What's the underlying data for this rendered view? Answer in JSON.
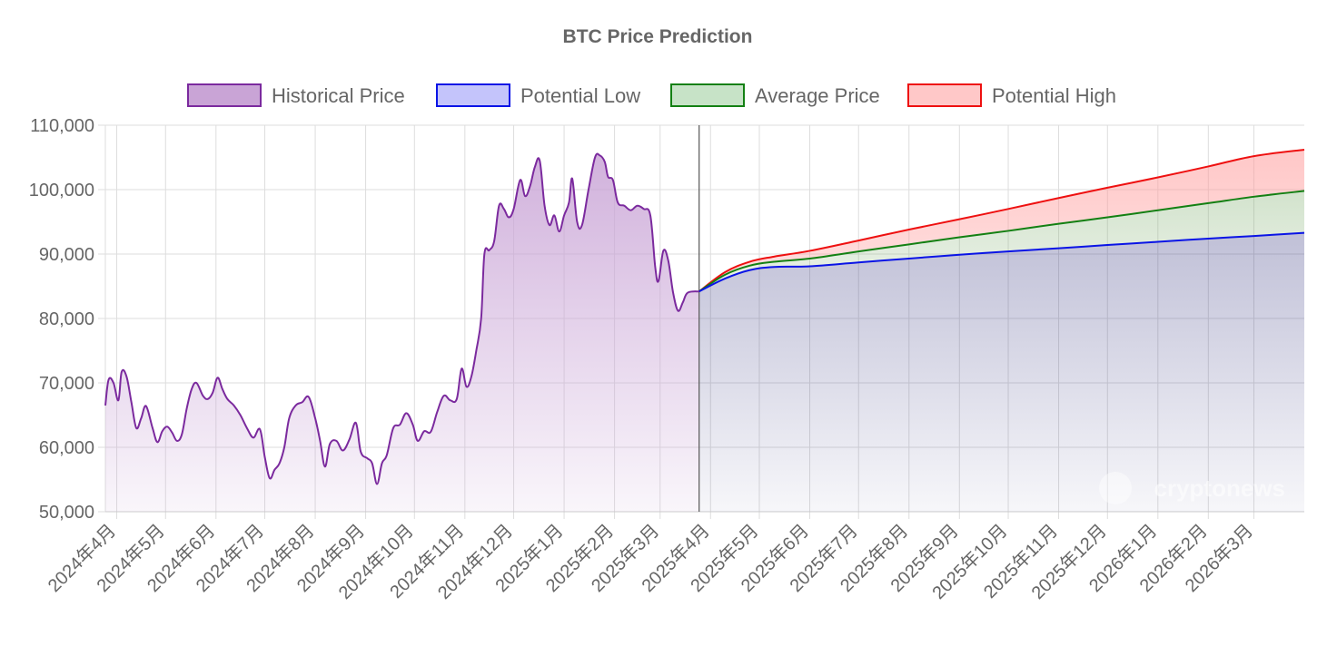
{
  "chart_data": {
    "type": "area",
    "title": "BTC Price Prediction",
    "watermark": "cryptonews",
    "y_ticks": [
      "110,000",
      "100,000",
      "90,000",
      "80,000",
      "70,000",
      "60,000",
      "50,000"
    ],
    "ylim": [
      50000,
      110000
    ],
    "x_tick_labels": [
      "2024年4月",
      "2024年5月",
      "2024年6月",
      "2024年7月",
      "2024年8月",
      "2024年9月",
      "2024年10月",
      "2024年11月",
      "2024年12月",
      "2025年1月",
      "2025年2月",
      "2025年3月",
      "2025年4月",
      "2025年5月",
      "2025年6月",
      "2025年7月",
      "2025年8月",
      "2025年9月",
      "2025年10月",
      "2025年11月",
      "2025年12月",
      "2026年1月",
      "2026年2月",
      "2026年3月"
    ],
    "x_range": [
      "2024-03-25",
      "2026-04-01"
    ],
    "grid": true,
    "legend_position": "top",
    "colors": {
      "historical_line": "#7b2a9e",
      "historical_fill": "#c9a4d6",
      "low_line": "#0a14e6",
      "low_fill": "#c4c4fb",
      "avg_line": "#138013",
      "avg_fill": "#c7e3c7",
      "high_line": "#ee1010",
      "high_fill": "#ffc8c8",
      "grid": "#dddddd",
      "text": "#666666"
    },
    "series": [
      {
        "name": "Historical Price",
        "key": "historical",
        "points": [
          [
            "2024-03-25",
            66500
          ],
          [
            "2024-03-27",
            70500
          ],
          [
            "2024-03-30",
            70000
          ],
          [
            "2024-04-02",
            67300
          ],
          [
            "2024-04-04",
            71700
          ],
          [
            "2024-04-07",
            71000
          ],
          [
            "2024-04-10",
            67000
          ],
          [
            "2024-04-13",
            63000
          ],
          [
            "2024-04-16",
            64500
          ],
          [
            "2024-04-19",
            66400
          ],
          [
            "2024-04-23",
            63000
          ],
          [
            "2024-04-26",
            60800
          ],
          [
            "2024-04-29",
            62500
          ],
          [
            "2024-05-02",
            63200
          ],
          [
            "2024-05-05",
            62300
          ],
          [
            "2024-05-08",
            61000
          ],
          [
            "2024-05-11",
            62000
          ],
          [
            "2024-05-14",
            66000
          ],
          [
            "2024-05-17",
            69000
          ],
          [
            "2024-05-20",
            70000
          ],
          [
            "2024-05-24",
            68000
          ],
          [
            "2024-05-27",
            67500
          ],
          [
            "2024-05-30",
            68500
          ],
          [
            "2024-06-02",
            70800
          ],
          [
            "2024-06-05",
            69000
          ],
          [
            "2024-06-08",
            67500
          ],
          [
            "2024-06-12",
            66500
          ],
          [
            "2024-06-16",
            65000
          ],
          [
            "2024-06-20",
            63000
          ],
          [
            "2024-06-24",
            61500
          ],
          [
            "2024-06-28",
            62800
          ],
          [
            "2024-07-01",
            58500
          ],
          [
            "2024-07-04",
            55200
          ],
          [
            "2024-07-07",
            56500
          ],
          [
            "2024-07-10",
            57500
          ],
          [
            "2024-07-13",
            60000
          ],
          [
            "2024-07-16",
            64500
          ],
          [
            "2024-07-20",
            66500
          ],
          [
            "2024-07-24",
            67000
          ],
          [
            "2024-07-28",
            67800
          ],
          [
            "2024-08-01",
            64500
          ],
          [
            "2024-08-04",
            61000
          ],
          [
            "2024-08-07",
            57000
          ],
          [
            "2024-08-10",
            60500
          ],
          [
            "2024-08-14",
            61000
          ],
          [
            "2024-08-18",
            59500
          ],
          [
            "2024-08-22",
            61200
          ],
          [
            "2024-08-26",
            63800
          ],
          [
            "2024-08-29",
            59300
          ],
          [
            "2024-09-02",
            58300
          ],
          [
            "2024-09-05",
            57500
          ],
          [
            "2024-09-08",
            54300
          ],
          [
            "2024-09-11",
            57500
          ],
          [
            "2024-09-14",
            58800
          ],
          [
            "2024-09-18",
            63000
          ],
          [
            "2024-09-22",
            63500
          ],
          [
            "2024-09-26",
            65300
          ],
          [
            "2024-09-30",
            63500
          ],
          [
            "2024-10-03",
            61000
          ],
          [
            "2024-10-07",
            62500
          ],
          [
            "2024-10-11",
            62400
          ],
          [
            "2024-10-15",
            65500
          ],
          [
            "2024-10-19",
            68000
          ],
          [
            "2024-10-23",
            67300
          ],
          [
            "2024-10-27",
            67500
          ],
          [
            "2024-10-30",
            72200
          ],
          [
            "2024-11-02",
            69400
          ],
          [
            "2024-11-05",
            71000
          ],
          [
            "2024-11-08",
            75000
          ],
          [
            "2024-11-11",
            80000
          ],
          [
            "2024-11-13",
            90000
          ],
          [
            "2024-11-16",
            90600
          ],
          [
            "2024-11-19",
            92000
          ],
          [
            "2024-11-22",
            97500
          ],
          [
            "2024-11-25",
            97000
          ],
          [
            "2024-11-28",
            95700
          ],
          [
            "2024-12-01",
            97000
          ],
          [
            "2024-12-05",
            101500
          ],
          [
            "2024-12-08",
            99000
          ],
          [
            "2024-12-11",
            100500
          ],
          [
            "2024-12-14",
            103500
          ],
          [
            "2024-12-17",
            104500
          ],
          [
            "2024-12-20",
            97500
          ],
          [
            "2024-12-23",
            94500
          ],
          [
            "2024-12-26",
            96000
          ],
          [
            "2024-12-29",
            93500
          ],
          [
            "2025-01-01",
            96000
          ],
          [
            "2025-01-04",
            98000
          ],
          [
            "2025-01-06",
            101700
          ],
          [
            "2025-01-09",
            95000
          ],
          [
            "2025-01-12",
            94500
          ],
          [
            "2025-01-16",
            100000
          ],
          [
            "2025-01-20",
            105000
          ],
          [
            "2025-01-23",
            105300
          ],
          [
            "2025-01-26",
            104300
          ],
          [
            "2025-01-28",
            102000
          ],
          [
            "2025-01-31",
            101500
          ],
          [
            "2025-02-03",
            98000
          ],
          [
            "2025-02-07",
            97500
          ],
          [
            "2025-02-11",
            96800
          ],
          [
            "2025-02-15",
            97500
          ],
          [
            "2025-02-19",
            97000
          ],
          [
            "2025-02-23",
            96000
          ],
          [
            "2025-02-26",
            88000
          ],
          [
            "2025-02-28",
            85800
          ],
          [
            "2025-03-03",
            90500
          ],
          [
            "2025-03-06",
            89000
          ],
          [
            "2025-03-09",
            84000
          ],
          [
            "2025-03-12",
            81200
          ],
          [
            "2025-03-15",
            82500
          ],
          [
            "2025-03-18",
            84000
          ],
          [
            "2025-03-25",
            84200
          ]
        ]
      },
      {
        "name": "Potential Low",
        "key": "low",
        "points": [
          [
            "2025-03-25",
            84200
          ],
          [
            "2025-04-10",
            86200
          ],
          [
            "2025-04-25",
            87500
          ],
          [
            "2025-05-10",
            88000
          ],
          [
            "2025-06-01",
            88100
          ],
          [
            "2025-07-01",
            88700
          ],
          [
            "2025-08-01",
            89300
          ],
          [
            "2025-09-01",
            89900
          ],
          [
            "2025-10-01",
            90400
          ],
          [
            "2025-11-01",
            90900
          ],
          [
            "2025-12-01",
            91400
          ],
          [
            "2026-01-01",
            91900
          ],
          [
            "2026-02-01",
            92400
          ],
          [
            "2026-03-01",
            92800
          ],
          [
            "2026-04-01",
            93300
          ]
        ]
      },
      {
        "name": "Average Price",
        "key": "avg",
        "points": [
          [
            "2025-03-25",
            84200
          ],
          [
            "2025-04-10",
            86800
          ],
          [
            "2025-04-25",
            88200
          ],
          [
            "2025-05-10",
            88800
          ],
          [
            "2025-06-01",
            89300
          ],
          [
            "2025-07-01",
            90400
          ],
          [
            "2025-08-01",
            91500
          ],
          [
            "2025-09-01",
            92600
          ],
          [
            "2025-10-01",
            93600
          ],
          [
            "2025-11-01",
            94700
          ],
          [
            "2025-12-01",
            95700
          ],
          [
            "2026-01-01",
            96800
          ],
          [
            "2026-02-01",
            97900
          ],
          [
            "2026-03-01",
            98900
          ],
          [
            "2026-04-01",
            99800
          ]
        ]
      },
      {
        "name": "Potential High",
        "key": "high",
        "points": [
          [
            "2025-03-25",
            84200
          ],
          [
            "2025-04-10",
            87200
          ],
          [
            "2025-04-25",
            88800
          ],
          [
            "2025-05-10",
            89600
          ],
          [
            "2025-06-01",
            90500
          ],
          [
            "2025-07-01",
            92100
          ],
          [
            "2025-08-01",
            93800
          ],
          [
            "2025-09-01",
            95400
          ],
          [
            "2025-10-01",
            97000
          ],
          [
            "2025-11-01",
            98700
          ],
          [
            "2025-12-01",
            100300
          ],
          [
            "2026-01-01",
            101900
          ],
          [
            "2026-02-01",
            103600
          ],
          [
            "2026-03-01",
            105200
          ],
          [
            "2026-04-01",
            106200
          ]
        ]
      }
    ]
  }
}
